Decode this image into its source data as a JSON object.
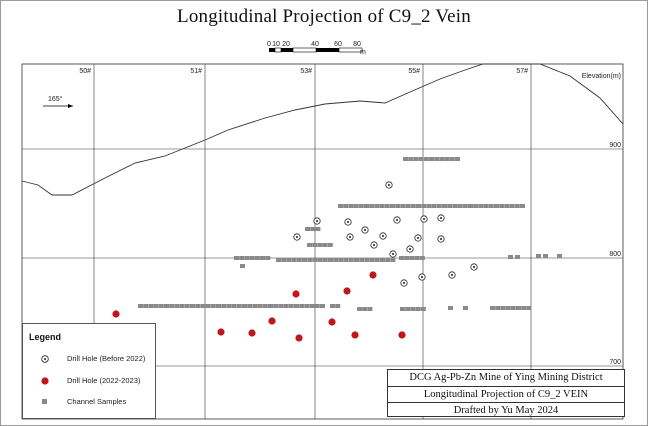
{
  "title": "Longitudinal Projection of C9_2 Vein",
  "scale_bar": {
    "labels": [
      "0",
      "10",
      "20",
      "40",
      "60",
      "80"
    ],
    "unit": "m"
  },
  "direction": {
    "label": "165°"
  },
  "elevation_axis": {
    "title": "Elevation(m)",
    "ticks": [
      "900",
      "800",
      "700"
    ]
  },
  "exploration_lines": [
    "50#",
    "51#",
    "53#",
    "55#",
    "57#"
  ],
  "legend": {
    "title": "Legend",
    "items": [
      {
        "label": "Drill Hole (Before 2022)",
        "symbol": "circle-dot"
      },
      {
        "label": "Drill Hole (2022-2023)",
        "symbol": "red-dot"
      },
      {
        "label": "Channel Samples",
        "symbol": "gray-square"
      }
    ]
  },
  "title_block": {
    "line1": "DCG Ag-Pb-Zn Mine of Ying Mining District",
    "line2": "Longitudinal Projection of C9_2  VEIN",
    "line3": "Drafted by Yu May 2024"
  },
  "colors": {
    "red_hole": "#c0161c",
    "gray_sample": "#8a8a8a",
    "grid": "#333333",
    "topo": "#333333"
  }
}
